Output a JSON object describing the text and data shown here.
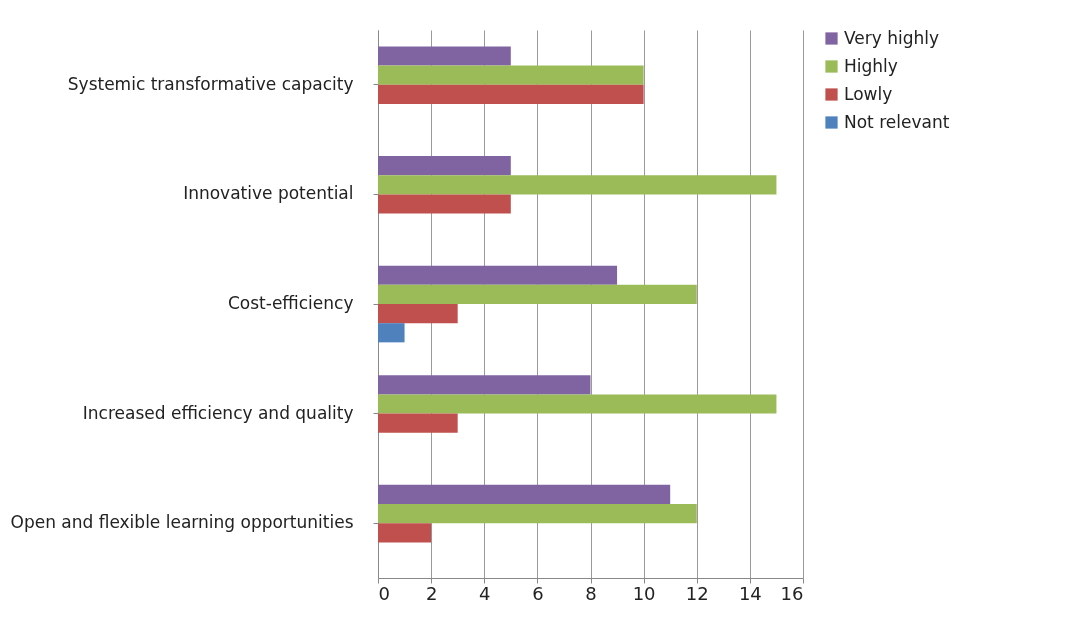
{
  "chart_data": {
    "type": "bar",
    "orientation": "horizontal",
    "categories": [
      "Systemic transformative capacity",
      "Innovative potential",
      "Cost-efficiency",
      "Increased efficiency and quality",
      "Open and flexible learning opportunities"
    ],
    "series": [
      {
        "name": "Very highly",
        "color": "#8064a2",
        "values": [
          5,
          5,
          9,
          8,
          11
        ]
      },
      {
        "name": "Highly",
        "color": "#9bbb59",
        "values": [
          10,
          15,
          12,
          15,
          12
        ]
      },
      {
        "name": "Lowly",
        "color": "#c0504d",
        "values": [
          10,
          5,
          3,
          3,
          2
        ]
      },
      {
        "name": "Not relevant",
        "color": "#4f81bd",
        "values": [
          null,
          null,
          1,
          null,
          null
        ]
      }
    ],
    "xlim": [
      0,
      16
    ],
    "xticks": [
      0,
      2,
      4,
      6,
      8,
      10,
      12,
      14,
      16
    ],
    "grid": "x",
    "legend": "right"
  }
}
